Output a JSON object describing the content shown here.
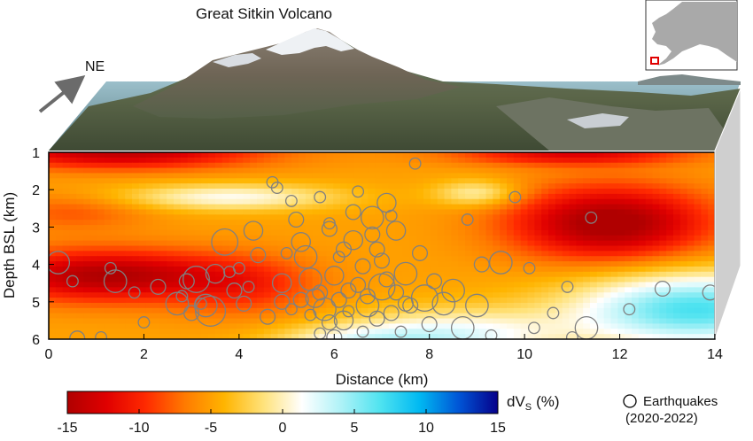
{
  "title": "Great Sitkin Volcano",
  "direction_label": "NE",
  "axes": {
    "ylabel": "Depth BSL (km)",
    "xlabel": "Distance (km)",
    "x_ticks": [
      "0",
      "2",
      "4",
      "6",
      "8",
      "10",
      "12",
      "14"
    ],
    "y_ticks": [
      "1",
      "2",
      "3",
      "4",
      "5",
      "6"
    ],
    "xlim": [
      0,
      14
    ],
    "ylim": [
      1,
      6
    ]
  },
  "colorbar": {
    "label_main": "dV",
    "label_sub": "S",
    "label_unit": "(%)",
    "ticks": [
      "-15",
      "-10",
      "-5",
      "0",
      "5",
      "10",
      "15"
    ],
    "range": [
      -15,
      15
    ],
    "colors": [
      "#b00000",
      "#e00000",
      "#ff2a00",
      "#ff7a00",
      "#ffb400",
      "#ffe27a",
      "#ffffff",
      "#aef2f7",
      "#4fe3f0",
      "#00b9f2",
      "#0055d6",
      "#06008a"
    ]
  },
  "legend": {
    "label_line1": "Earthquakes",
    "label_line2": "(2020-2022)",
    "marker": "open-circle",
    "marker_color": "#808080"
  },
  "inset_map": {
    "land_color": "#a9a9a9",
    "water_color": "#ffffff",
    "highlight_color": "#e00000"
  },
  "chart_data": {
    "type": "heatmap",
    "title": "Great Sitkin Volcano",
    "xlabel": "Distance (km)",
    "ylabel": "Depth BSL (km)",
    "xlim": [
      0,
      14
    ],
    "ylim": [
      1,
      6
    ],
    "value_range": [
      -15,
      15
    ],
    "earthquakes": [
      [
        0.2,
        3.95,
        0.3
      ],
      [
        0.5,
        4.45,
        0.15
      ],
      [
        0.6,
        5.98,
        0.2
      ],
      [
        1.1,
        5.95,
        0.15
      ],
      [
        1.3,
        4.1,
        0.15
      ],
      [
        1.4,
        4.45,
        0.3
      ],
      [
        1.8,
        4.75,
        0.15
      ],
      [
        2.0,
        5.55,
        0.15
      ],
      [
        2.3,
        4.6,
        0.2
      ],
      [
        2.7,
        5.05,
        0.3
      ],
      [
        2.8,
        4.85,
        0.15
      ],
      [
        2.9,
        4.45,
        0.2
      ],
      [
        3.0,
        5.3,
        0.2
      ],
      [
        3.1,
        4.4,
        0.35
      ],
      [
        3.2,
        5.05,
        0.15
      ],
      [
        3.3,
        5.1,
        0.3
      ],
      [
        3.4,
        5.25,
        0.4
      ],
      [
        3.5,
        4.25,
        0.25
      ],
      [
        3.7,
        3.4,
        0.35
      ],
      [
        3.8,
        4.2,
        0.15
      ],
      [
        3.9,
        4.7,
        0.2
      ],
      [
        4.0,
        4.1,
        0.15
      ],
      [
        4.1,
        5.05,
        0.2
      ],
      [
        4.2,
        4.6,
        0.15
      ],
      [
        4.3,
        3.1,
        0.25
      ],
      [
        4.4,
        3.75,
        0.2
      ],
      [
        4.6,
        5.4,
        0.2
      ],
      [
        4.7,
        1.8,
        0.15
      ],
      [
        4.8,
        1.95,
        0.15
      ],
      [
        4.9,
        4.5,
        0.25
      ],
      [
        5.0,
        3.7,
        0.15
      ],
      [
        5.1,
        2.3,
        0.15
      ],
      [
        5.2,
        2.8,
        0.2
      ],
      [
        5.3,
        3.4,
        0.25
      ],
      [
        5.4,
        3.8,
        0.3
      ],
      [
        5.5,
        4.4,
        0.3
      ],
      [
        5.6,
        4.9,
        0.25
      ],
      [
        5.7,
        2.2,
        0.15
      ],
      [
        5.8,
        5.2,
        0.3
      ],
      [
        5.9,
        3.05,
        0.2
      ],
      [
        6.0,
        4.3,
        0.25
      ],
      [
        6.1,
        3.8,
        0.15
      ],
      [
        6.2,
        5.5,
        0.25
      ],
      [
        6.3,
        4.7,
        0.2
      ],
      [
        6.4,
        3.35,
        0.25
      ],
      [
        6.5,
        2.05,
        0.15
      ],
      [
        6.6,
        4.05,
        0.2
      ],
      [
        6.7,
        5.1,
        0.3
      ],
      [
        6.8,
        2.75,
        0.3
      ],
      [
        6.9,
        3.6,
        0.2
      ],
      [
        7.0,
        4.6,
        0.35
      ],
      [
        7.1,
        2.35,
        0.25
      ],
      [
        7.2,
        5.3,
        0.2
      ],
      [
        7.3,
        3.1,
        0.25
      ],
      [
        7.5,
        4.25,
        0.3
      ],
      [
        7.6,
        5.1,
        0.2
      ],
      [
        7.7,
        1.3,
        0.15
      ],
      [
        7.8,
        3.7,
        0.2
      ],
      [
        7.9,
        4.9,
        0.35
      ],
      [
        8.0,
        5.6,
        0.2
      ],
      [
        8.1,
        4.45,
        0.2
      ],
      [
        8.3,
        5.05,
        0.3
      ],
      [
        8.5,
        4.7,
        0.3
      ],
      [
        8.7,
        5.7,
        0.3
      ],
      [
        8.8,
        2.8,
        0.15
      ],
      [
        9.0,
        5.1,
        0.3
      ],
      [
        9.1,
        4.0,
        0.2
      ],
      [
        9.3,
        5.9,
        0.15
      ],
      [
        9.5,
        3.95,
        0.3
      ],
      [
        9.8,
        2.2,
        0.15
      ],
      [
        10.1,
        4.1,
        0.15
      ],
      [
        10.2,
        5.7,
        0.15
      ],
      [
        10.6,
        5.3,
        0.15
      ],
      [
        10.9,
        4.6,
        0.15
      ],
      [
        11.0,
        5.95,
        0.15
      ],
      [
        11.3,
        5.7,
        0.3
      ],
      [
        11.4,
        2.75,
        0.15
      ],
      [
        12.2,
        5.2,
        0.15
      ],
      [
        12.9,
        4.65,
        0.2
      ],
      [
        13.9,
        4.75,
        0.2
      ],
      [
        4.9,
        5.0,
        0.2
      ],
      [
        5.1,
        5.2,
        0.15
      ],
      [
        5.3,
        4.95,
        0.2
      ],
      [
        5.5,
        5.35,
        0.15
      ],
      [
        5.7,
        4.75,
        0.2
      ],
      [
        5.9,
        5.55,
        0.2
      ],
      [
        6.1,
        4.95,
        0.2
      ],
      [
        6.3,
        5.25,
        0.15
      ],
      [
        6.5,
        4.55,
        0.2
      ],
      [
        6.7,
        4.85,
        0.2
      ],
      [
        6.9,
        5.45,
        0.2
      ],
      [
        7.1,
        4.4,
        0.2
      ],
      [
        7.3,
        4.75,
        0.2
      ],
      [
        7.5,
        5.05,
        0.2
      ],
      [
        6.0,
        5.95,
        0.2
      ],
      [
        6.6,
        5.8,
        0.15
      ],
      [
        5.7,
        5.85,
        0.15
      ],
      [
        7.4,
        5.8,
        0.15
      ],
      [
        6.2,
        3.6,
        0.2
      ],
      [
        6.8,
        3.2,
        0.2
      ],
      [
        5.9,
        2.9,
        0.15
      ],
      [
        7.0,
        3.9,
        0.2
      ],
      [
        6.4,
        2.6,
        0.2
      ],
      [
        7.2,
        2.7,
        0.15
      ]
    ]
  }
}
